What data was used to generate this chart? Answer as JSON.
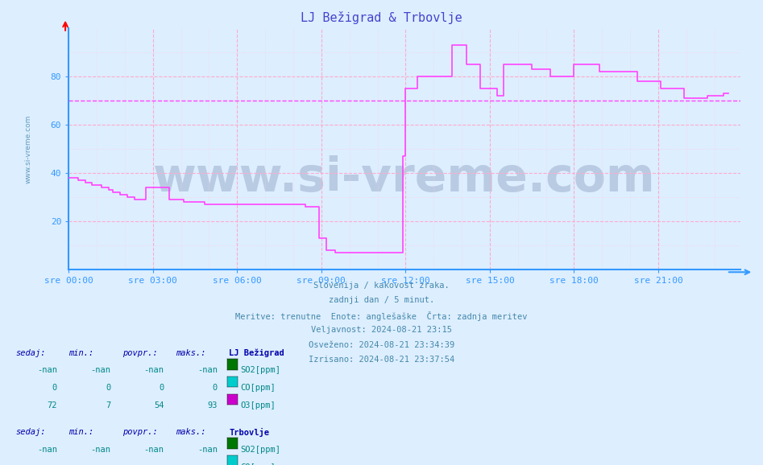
{
  "title": "LJ Bežigrad & Trbovlje",
  "title_color": "#4444cc",
  "background_color": "#ddeeff",
  "plot_bg_color": "#ddeeff",
  "fig_bg_color": "#ddeeff",
  "watermark": "www.si-vreme.com",
  "watermark_color": "#1a3060",
  "watermark_alpha": 0.18,
  "axis_color": "#3399ff",
  "grid_major_color": "#ffaacc",
  "grid_minor_color": "#ffccdd",
  "ylim": [
    0,
    100
  ],
  "xlim_max": 287,
  "yticks": [
    20,
    40,
    60,
    80
  ],
  "xtick_labels": [
    "sre 00:00",
    "sre 03:00",
    "sre 06:00",
    "sre 09:00",
    "sre 12:00",
    "sre 15:00",
    "sre 18:00",
    "sre 21:00"
  ],
  "xtick_positions": [
    0,
    36,
    72,
    108,
    144,
    180,
    216,
    252
  ],
  "hline_y": 70,
  "hline_color": "#ff44ff",
  "subtitle_lines": [
    "Slovenija / kakovost zraka.",
    "zadnji dan / 5 minut.",
    "Meritve: trenutne  Enote: anglešaške  Črta: zadnja meritev",
    "Veljavnost: 2024-08-21 23:15",
    "Osveženo: 2024-08-21 23:34:39",
    "Izrisano: 2024-08-21 23:37:54"
  ],
  "subtitle_color": "#4488aa",
  "legend_header_color": "#0000aa",
  "legend_text_color": "#008888",
  "so2_color": "#007700",
  "co_color": "#00cccc",
  "o3_color": "#cc00cc",
  "o3_line_color": "#ff44ff",
  "o3_lj_values": [
    38,
    38,
    38,
    38,
    37,
    37,
    37,
    36,
    36,
    36,
    35,
    35,
    35,
    35,
    34,
    34,
    34,
    33,
    33,
    32,
    32,
    32,
    31,
    31,
    31,
    30,
    30,
    30,
    29,
    29,
    29,
    29,
    29,
    34,
    34,
    34,
    34,
    34,
    34,
    34,
    34,
    34,
    34,
    29,
    29,
    29,
    29,
    29,
    29,
    28,
    28,
    28,
    28,
    28,
    28,
    28,
    28,
    28,
    27,
    27,
    27,
    27,
    27,
    27,
    27,
    27,
    27,
    27,
    27,
    27,
    27,
    27,
    27,
    27,
    27,
    27,
    27,
    27,
    27,
    27,
    27,
    27,
    27,
    27,
    27,
    27,
    27,
    27,
    27,
    27,
    27,
    27,
    27,
    27,
    27,
    27,
    27,
    27,
    27,
    27,
    27,
    26,
    26,
    26,
    26,
    26,
    26,
    13,
    13,
    13,
    8,
    8,
    8,
    8,
    7,
    7,
    7,
    7,
    7,
    7,
    7,
    7,
    7,
    7,
    7,
    7,
    7,
    7,
    7,
    7,
    7,
    7,
    7,
    7,
    7,
    7,
    7,
    7,
    7,
    7,
    7,
    7,
    7,
    47,
    75,
    75,
    75,
    75,
    75,
    80,
    80,
    80,
    80,
    80,
    80,
    80,
    80,
    80,
    80,
    80,
    80,
    80,
    80,
    80,
    93,
    93,
    93,
    93,
    93,
    93,
    85,
    85,
    85,
    85,
    85,
    85,
    75,
    75,
    75,
    75,
    75,
    75,
    75,
    72,
    72,
    72,
    85,
    85,
    85,
    85,
    85,
    85,
    85,
    85,
    85,
    85,
    85,
    85,
    83,
    83,
    83,
    83,
    83,
    83,
    83,
    83,
    80,
    80,
    80,
    80,
    80,
    80,
    80,
    80,
    80,
    80,
    85,
    85,
    85,
    85,
    85,
    85,
    85,
    85,
    85,
    85,
    85,
    82,
    82,
    82,
    82,
    82,
    82,
    82,
    82,
    82,
    82,
    82,
    82,
    82,
    82,
    82,
    82,
    78,
    78,
    78,
    78,
    78,
    78,
    78,
    78,
    78,
    78,
    75,
    75,
    75,
    75,
    75,
    75,
    75,
    75,
    75,
    75,
    71,
    71,
    71,
    71,
    71,
    71,
    71,
    71,
    71,
    71,
    72,
    72,
    72,
    72,
    72,
    72,
    72,
    73,
    73,
    73
  ],
  "lj_sedaj": "72",
  "lj_min": "7",
  "lj_povpr": "54",
  "lj_maks": "93",
  "so2_lj_sedaj": "-nan",
  "so2_lj_min": "-nan",
  "so2_lj_povpr": "-nan",
  "so2_lj_maks": "-nan",
  "co_lj_sedaj": "0",
  "co_lj_min": "0",
  "co_lj_povpr": "0",
  "co_lj_maks": "0",
  "trb_sedaj": "-nan",
  "trb_min": "-nan",
  "trb_povpr": "-nan",
  "trb_maks": "-nan",
  "so2_trb_sedaj": "-nan",
  "so2_trb_min": "-nan",
  "so2_trb_povpr": "-nan",
  "so2_trb_maks": "-nan",
  "co_trb_sedaj": "-nan",
  "co_trb_min": "-nan",
  "co_trb_povpr": "-nan",
  "co_trb_maks": "-nan"
}
